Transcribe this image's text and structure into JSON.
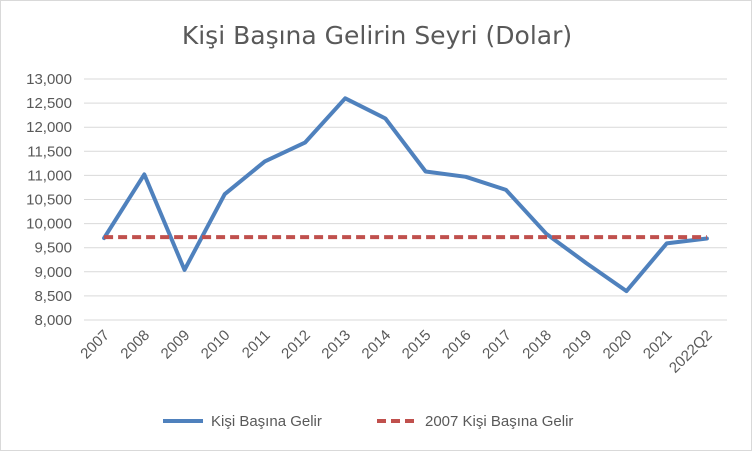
{
  "chart_data": {
    "type": "line",
    "title": "Kişi Başına Gelirin Seyri (Dolar)",
    "categories": [
      "2007",
      "2008",
      "2009",
      "2010",
      "2011",
      "2012",
      "2013",
      "2014",
      "2015",
      "2016",
      "2017",
      "2018",
      "2019",
      "2020",
      "2021",
      "2022Q2"
    ],
    "series": [
      {
        "name": "Kişi Başına Gelir",
        "color": "#4f81bd",
        "style": "solid",
        "values": [
          9700,
          11020,
          9040,
          10610,
          11290,
          11680,
          12600,
          12180,
          11080,
          10970,
          10700,
          9790,
          9180,
          8600,
          9590,
          9690
        ]
      },
      {
        "name": "2007 Kişi Başına Gelir",
        "color": "#c0504d",
        "style": "dashed",
        "values": [
          9720,
          9720,
          9720,
          9720,
          9720,
          9720,
          9720,
          9720,
          9720,
          9720,
          9720,
          9720,
          9720,
          9720,
          9720,
          9720
        ]
      }
    ],
    "ylim": [
      8000,
      13000
    ],
    "yticks": [
      "8,000",
      "8,500",
      "9,000",
      "9,500",
      "10,000",
      "10,500",
      "11,000",
      "11,500",
      "12,000",
      "12,500",
      "13,000"
    ],
    "grid": true,
    "legend": "bottom",
    "xlabel": "",
    "ylabel": ""
  }
}
